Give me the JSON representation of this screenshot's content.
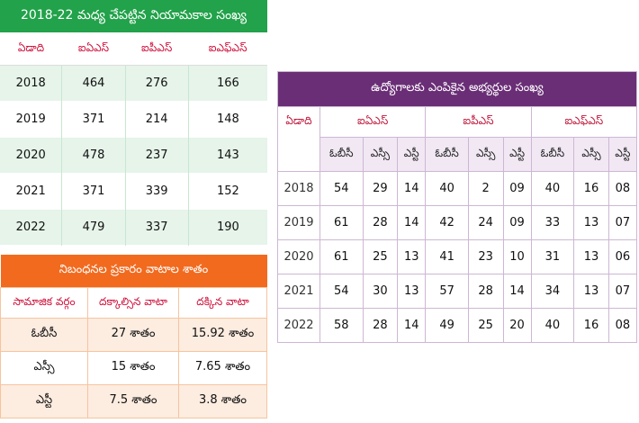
{
  "table1": {
    "title": "2018-22 మధ్య చేపట్టిన నియామకాల సంఖ్య",
    "headers": [
      "ఏడాది",
      "ఐఏఎస్",
      "ఐపీఎస్",
      "ఐఎఫ్‌ఎస్"
    ],
    "rows": [
      [
        "2018",
        "464",
        "276",
        "166"
      ],
      [
        "2019",
        "371",
        "214",
        "148"
      ],
      [
        "2020",
        "478",
        "237",
        "143"
      ],
      [
        "2021",
        "371",
        "339",
        "152"
      ],
      [
        "2022",
        "479",
        "337",
        "190"
      ]
    ],
    "title_color": "#22a24a"
  },
  "table2": {
    "title": "ఉద్యోగాలకు ఎంపికైన అభ్యర్థుల సంఖ్య",
    "year_header": "ఏడాది",
    "groups": [
      "ఐఏఎస్",
      "ఐపీఎస్",
      "ఐఎఫ్‌ఎస్"
    ],
    "subheaders": [
      "ఓబీసీ",
      "ఎస్సీ",
      "ఎస్టీ",
      "ఓబీసీ",
      "ఎస్సీ",
      "ఎస్టీ",
      "ఓబీసీ",
      "ఎస్సీ",
      "ఎస్టీ"
    ],
    "rows": [
      [
        "2018",
        "54",
        "29",
        "14",
        "40",
        "2",
        "09",
        "40",
        "16",
        "08"
      ],
      [
        "2019",
        "61",
        "28",
        "14",
        "42",
        "24",
        "09",
        "33",
        "13",
        "07"
      ],
      [
        "2020",
        "61",
        "25",
        "13",
        "41",
        "23",
        "10",
        "31",
        "13",
        "06"
      ],
      [
        "2021",
        "54",
        "30",
        "13",
        "57",
        "28",
        "14",
        "34",
        "13",
        "07"
      ],
      [
        "2022",
        "58",
        "28",
        "14",
        "49",
        "25",
        "20",
        "40",
        "16",
        "08"
      ]
    ],
    "title_color": "#6a2e76"
  },
  "table3": {
    "title": "నిబంధనల ప్రకారం వాటాల శాతం",
    "headers": [
      "సామాజిక వర్గం",
      "దక్కాల్సిన వాటా",
      "దక్కిన వాటా"
    ],
    "rows": [
      [
        "ఓబీసీ",
        "27 శాతం",
        "15.92 శాతం"
      ],
      [
        "ఎస్సీ",
        "15 శాతం",
        "7.65 శాతం"
      ],
      [
        "ఎస్టీ",
        "7.5 శాతం",
        "3.8 శాతం"
      ]
    ],
    "title_color": "#f26a1e"
  }
}
